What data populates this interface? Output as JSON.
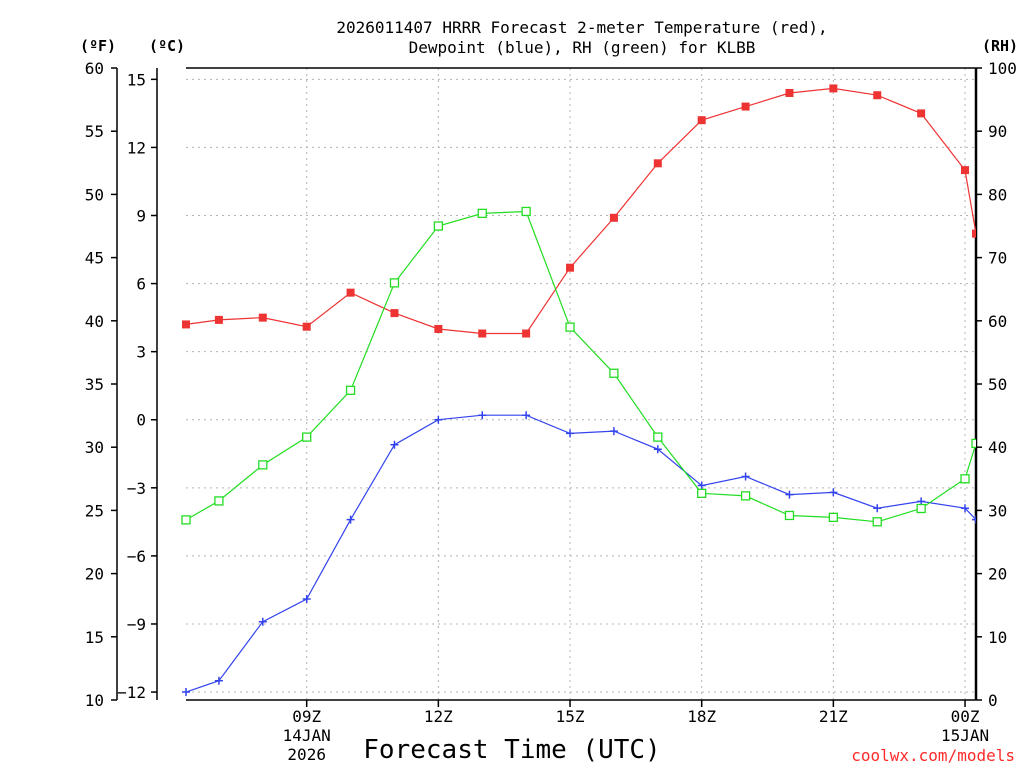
{
  "chart_data": {
    "type": "line",
    "title_lines": [
      "2026011407 HRRR Forecast 2-meter Temperature (red),",
      "Dewpoint (blue), RH (green) for KLBB"
    ],
    "xlabel": "Forecast Time (UTC)",
    "credit": "coolwx.com/models",
    "units": {
      "fahrenheit": "(ºF)",
      "celsius": "(ºC)",
      "rh": "(RH)"
    },
    "x_range": [
      6.25,
      24.25
    ],
    "x_hours": [
      6.25,
      7,
      8,
      9,
      10,
      11,
      12,
      13,
      14,
      15,
      16,
      17,
      18,
      19,
      20,
      21,
      22,
      23,
      24,
      24.25
    ],
    "x_ticks": [
      {
        "x": 9,
        "label": "09Z",
        "sub1": "14JAN",
        "sub2": "2026"
      },
      {
        "x": 12,
        "label": "12Z",
        "sub1": "",
        "sub2": ""
      },
      {
        "x": 15,
        "label": "15Z",
        "sub1": "",
        "sub2": ""
      },
      {
        "x": 18,
        "label": "18Z",
        "sub1": "",
        "sub2": ""
      },
      {
        "x": 21,
        "label": "21Z",
        "sub1": "",
        "sub2": ""
      },
      {
        "x": 24,
        "label": "00Z",
        "sub1": "15JAN",
        "sub2": ""
      }
    ],
    "y_celsius": {
      "range": [
        -12.35,
        15.5
      ],
      "ticks": [
        15,
        12,
        9,
        6,
        3,
        0,
        -3,
        -6,
        -9,
        -12
      ],
      "labels": [
        "15",
        "12",
        "9",
        "6",
        "3",
        "0",
        "−3",
        "−6",
        "−9",
        "−12"
      ]
    },
    "y_fahrenheit": {
      "range": [
        10,
        60
      ],
      "ticks": [
        60,
        55,
        50,
        45,
        40,
        35,
        30,
        25,
        20,
        15,
        10
      ]
    },
    "y_rh": {
      "range": [
        0,
        100
      ],
      "ticks": [
        100,
        90,
        80,
        70,
        60,
        50,
        40,
        30,
        20,
        10,
        0
      ]
    },
    "grid": true,
    "series": [
      {
        "name": "Temperature",
        "color": "#ee3333",
        "marker": "filled-square",
        "axis": "celsius",
        "values": [
          4.2,
          4.4,
          4.5,
          4.1,
          5.6,
          4.7,
          4.0,
          3.8,
          3.8,
          6.7,
          8.9,
          11.3,
          13.2,
          13.8,
          14.4,
          14.6,
          14.3,
          13.5,
          11.0,
          8.2
        ]
      },
      {
        "name": "Dewpoint",
        "color": "#3344ee",
        "marker": "plus",
        "axis": "celsius",
        "values": [
          -12.0,
          -11.5,
          -8.9,
          -7.9,
          -4.4,
          -1.1,
          0.0,
          0.2,
          0.2,
          -0.6,
          -0.5,
          -1.3,
          -2.9,
          -2.5,
          -3.3,
          -3.2,
          -3.9,
          -3.6,
          -3.9,
          -4.4
        ]
      },
      {
        "name": "RH",
        "color": "#22dd22",
        "marker": "open-square",
        "axis": "rh",
        "values": [
          28.5,
          31.5,
          37.2,
          41.6,
          49.0,
          66.0,
          75.0,
          77.0,
          77.3,
          59.0,
          51.7,
          41.6,
          32.7,
          32.3,
          29.2,
          28.9,
          28.2,
          30.3,
          35.0,
          40.6
        ]
      }
    ]
  }
}
